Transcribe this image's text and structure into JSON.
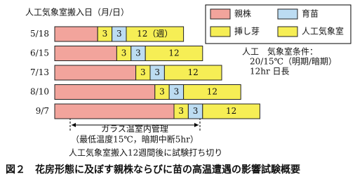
{
  "chart_data": {
    "type": "gantt",
    "axis_title": "人工気象室搬入日（月/日）",
    "categories": [
      "5/18",
      "6/15",
      "7/13",
      "8/10",
      "9/7"
    ],
    "series": [
      {
        "name": "親株",
        "color": "#f2a49c",
        "values": [
          9,
          13,
          17,
          21,
          25
        ]
      },
      {
        "name": "挿し芽",
        "color": "#f6ee55",
        "values": [
          3,
          3,
          3,
          3,
          3
        ]
      },
      {
        "name": "育苗",
        "color": "#bcdcf2",
        "values": [
          3,
          3,
          3,
          3,
          3
        ]
      },
      {
        "name": "人工気象室",
        "color": "#f6ee55",
        "values": [
          12,
          12,
          12,
          12,
          12
        ],
        "value_labels": [
          "12（週）",
          "12",
          "12",
          "12",
          "12"
        ]
      }
    ],
    "conditions": [
      "人工　気象室条件：",
      "20/15℃（明期/暗期）",
      "12hr 日長"
    ],
    "greenhouse_note": [
      "ガラス温室内管理",
      "（最低温度15℃，暗期中断5hr）"
    ],
    "end_note": "人工気象室搬入12週間後に試験打ち切り",
    "caption": "図２　花房形態に及ぼす親株ならびに苗の高温遭遇の影響試験概要"
  }
}
